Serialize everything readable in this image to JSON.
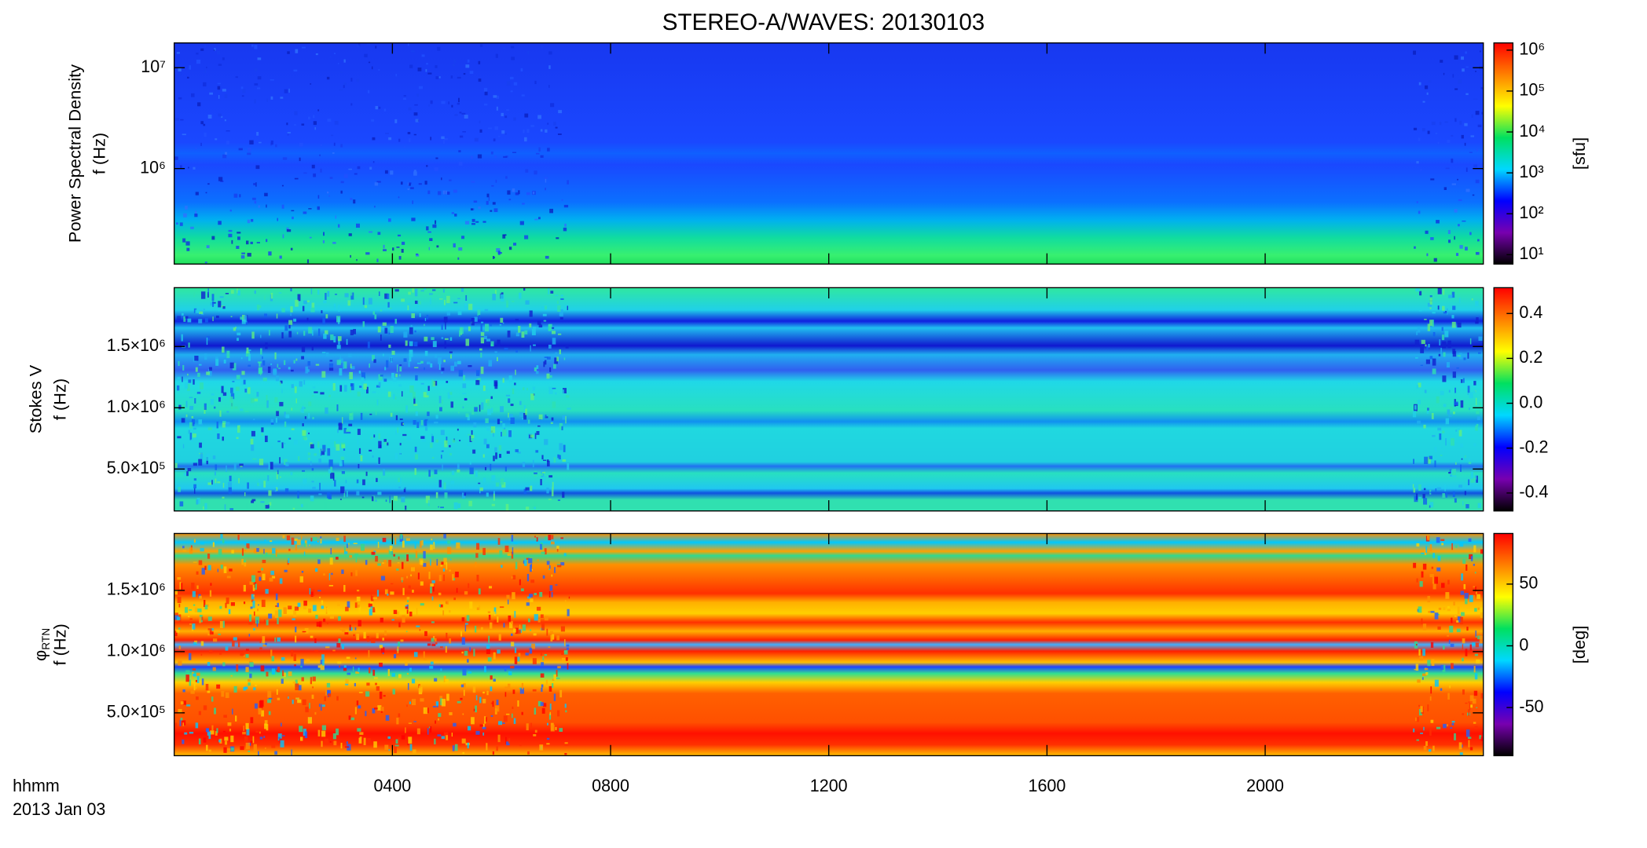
{
  "title": "STEREO-A/WAVES: 20130103",
  "xaxis": {
    "label_lines": [
      "hhmm",
      "2013 Jan 03"
    ],
    "xlim": [
      0,
      24
    ],
    "xticks": [
      {
        "value": 4,
        "label": "0400"
      },
      {
        "value": 8,
        "label": "0800"
      },
      {
        "value": 12,
        "label": "1200"
      },
      {
        "value": 16,
        "label": "1600"
      },
      {
        "value": 20,
        "label": "2000"
      }
    ]
  },
  "chart_data": [
    {
      "type": "spectrogram",
      "ylabel": [
        "Power Spectral Density",
        "f (Hz)"
      ],
      "ylog": true,
      "ylim": [
        113000,
        17600000
      ],
      "yticks": [
        {
          "value": 1000000,
          "label": "10⁶"
        },
        {
          "value": 10000000,
          "label": "10⁷"
        }
      ],
      "colorbar": {
        "log": true,
        "lim": [
          5.9,
          1500000
        ],
        "label": "[sfu]",
        "colormap": [
          "#000000",
          "#7800b0",
          "#0000ff",
          "#00d8ff",
          "#00e060",
          "#ffff00",
          "#ff8000",
          "#ff0000"
        ],
        "ticks": [
          {
            "value": 10,
            "label": "10¹"
          },
          {
            "value": 100,
            "label": "10²"
          },
          {
            "value": 1000,
            "label": "10³"
          },
          {
            "value": 10000,
            "label": "10⁴"
          },
          {
            "value": 100000,
            "label": "10⁵"
          },
          {
            "value": 1000000,
            "label": "10⁶"
          }
        ]
      }
    },
    {
      "type": "spectrogram",
      "ylabel": [
        "Stokes V",
        "f (Hz)"
      ],
      "ylog": false,
      "ylim": [
        158000,
        1980000
      ],
      "yticks": [
        {
          "value": 500000,
          "label": "5.0×10⁵"
        },
        {
          "value": 1000000,
          "label": "1.0×10⁶"
        },
        {
          "value": 1500000,
          "label": "1.5×10⁶"
        }
      ],
      "colorbar": {
        "log": false,
        "lim": [
          -0.48,
          0.515
        ],
        "label": "",
        "colormap": [
          "#000000",
          "#7800b0",
          "#0000ff",
          "#00d8ff",
          "#00e060",
          "#ffff00",
          "#ff8000",
          "#ff0000"
        ],
        "ticks": [
          -0.4,
          -0.2,
          {
            "value": 0,
            "label": "0.0"
          },
          0.2,
          0.4
        ]
      }
    },
    {
      "type": "spectrogram",
      "ylabel": [
        "f (Hz)"
      ],
      "ylabel_symbol": "φ",
      "ylabel_subscript": "RTN",
      "ylog": false,
      "ylim": [
        150000,
        1965000
      ],
      "yticks": [
        {
          "value": 500000,
          "label": "5.0×10⁵"
        },
        {
          "value": 1000000,
          "label": "1.0×10⁶"
        },
        {
          "value": 1500000,
          "label": "1.5×10⁶"
        }
      ],
      "colorbar": {
        "log": false,
        "lim": [
          -89,
          91
        ],
        "label": "[deg]",
        "colormap": [
          "#000000",
          "#7800b0",
          "#0000ff",
          "#00d8ff",
          "#00e060",
          "#ffff00",
          "#ff8000",
          "#ff0000"
        ],
        "ticks": [
          -50,
          0,
          50
        ]
      }
    }
  ]
}
